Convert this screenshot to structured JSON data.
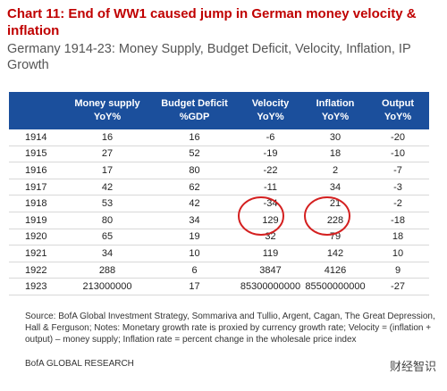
{
  "header": {
    "title": "Chart 11: End of WW1 caused jump in German money velocity & inflation",
    "subtitle": "Germany 1914-23: Money Supply, Budget Deficit, Velocity, Inflation, IP Growth"
  },
  "table": {
    "columns": [
      [
        "Money supply",
        "YoY%"
      ],
      [
        "Budget Deficit",
        "%GDP"
      ],
      [
        "Velocity",
        "YoY%"
      ],
      [
        "Inflation",
        "YoY%"
      ],
      [
        "Output",
        "YoY%"
      ]
    ],
    "rows": [
      [
        1914,
        16,
        16,
        -6,
        30,
        -20
      ],
      [
        1915,
        27,
        52,
        -19,
        18,
        -10
      ],
      [
        1916,
        17,
        80,
        -22,
        2,
        -7
      ],
      [
        1917,
        42,
        62,
        -11,
        34,
        -3
      ],
      [
        1918,
        53,
        42,
        -34,
        21,
        -2
      ],
      [
        1919,
        80,
        34,
        129,
        228,
        -18
      ],
      [
        1920,
        65,
        19,
        32,
        79,
        18
      ],
      [
        1921,
        34,
        10,
        119,
        142,
        10
      ],
      [
        1922,
        288,
        6,
        3847,
        4126,
        9
      ],
      [
        1923,
        213000000,
        17,
        85300000000,
        85500000000,
        -27
      ]
    ]
  },
  "footer": {
    "source": "Source: BofA Global Investment Strategy, Sommariva and Tullio, Argent, Cagan, The Great Depression, Hall & Ferguson; Notes: Monetary growth rate is proxied by currency growth rate; Velocity = (inflation + output) – money supply; Inflation rate = percent change in the wholesale price index",
    "brand": "BofA GLOBAL RESEARCH",
    "watermark": "财经智识"
  }
}
